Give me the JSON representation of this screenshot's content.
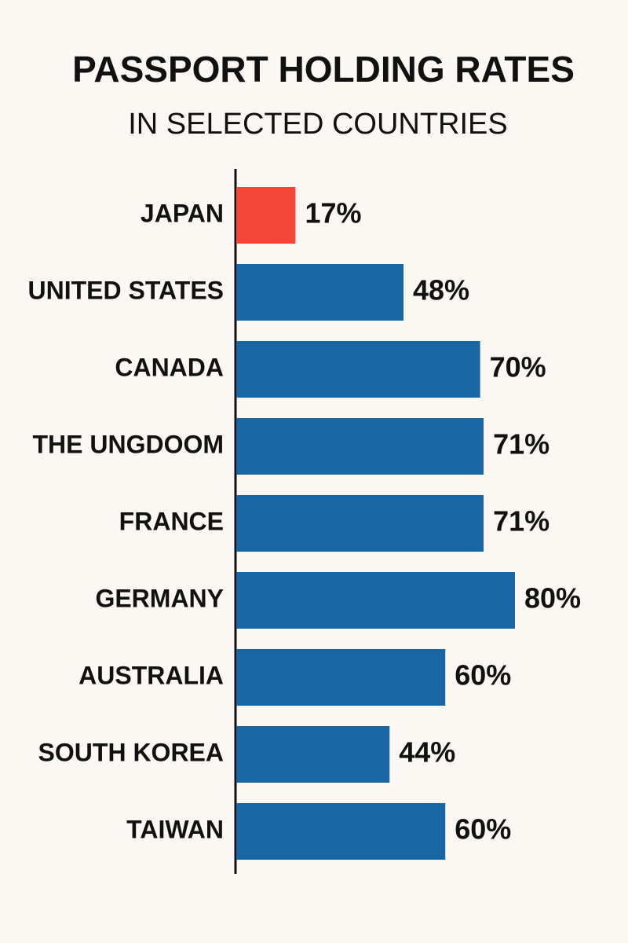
{
  "chart_data": {
    "type": "bar",
    "orientation": "horizontal",
    "title": "PASSPORT HOLDING RATES",
    "subtitle": "IN SELECTED COUNTRIES",
    "categories": [
      "JAPAN",
      "UNITED STATES",
      "CANADA",
      "THE UNGDOOM",
      "FRANCE",
      "GERMANY",
      "AUSTRALIA",
      "SOUTH KOREA",
      "TAIWAN"
    ],
    "values": [
      17,
      48,
      70,
      71,
      71,
      80,
      60,
      44,
      60
    ],
    "value_labels": [
      "17%",
      "48%",
      "70%",
      "71%",
      "71%",
      "80%",
      "60%",
      "44%",
      "60%"
    ],
    "colors": [
      "#f4463a",
      "#1a66a2",
      "#1a66a2",
      "#1a66a2",
      "#1a66a2",
      "#1a66a2",
      "#1a66a2",
      "#1a66a2",
      "#1a66a2"
    ]
  }
}
